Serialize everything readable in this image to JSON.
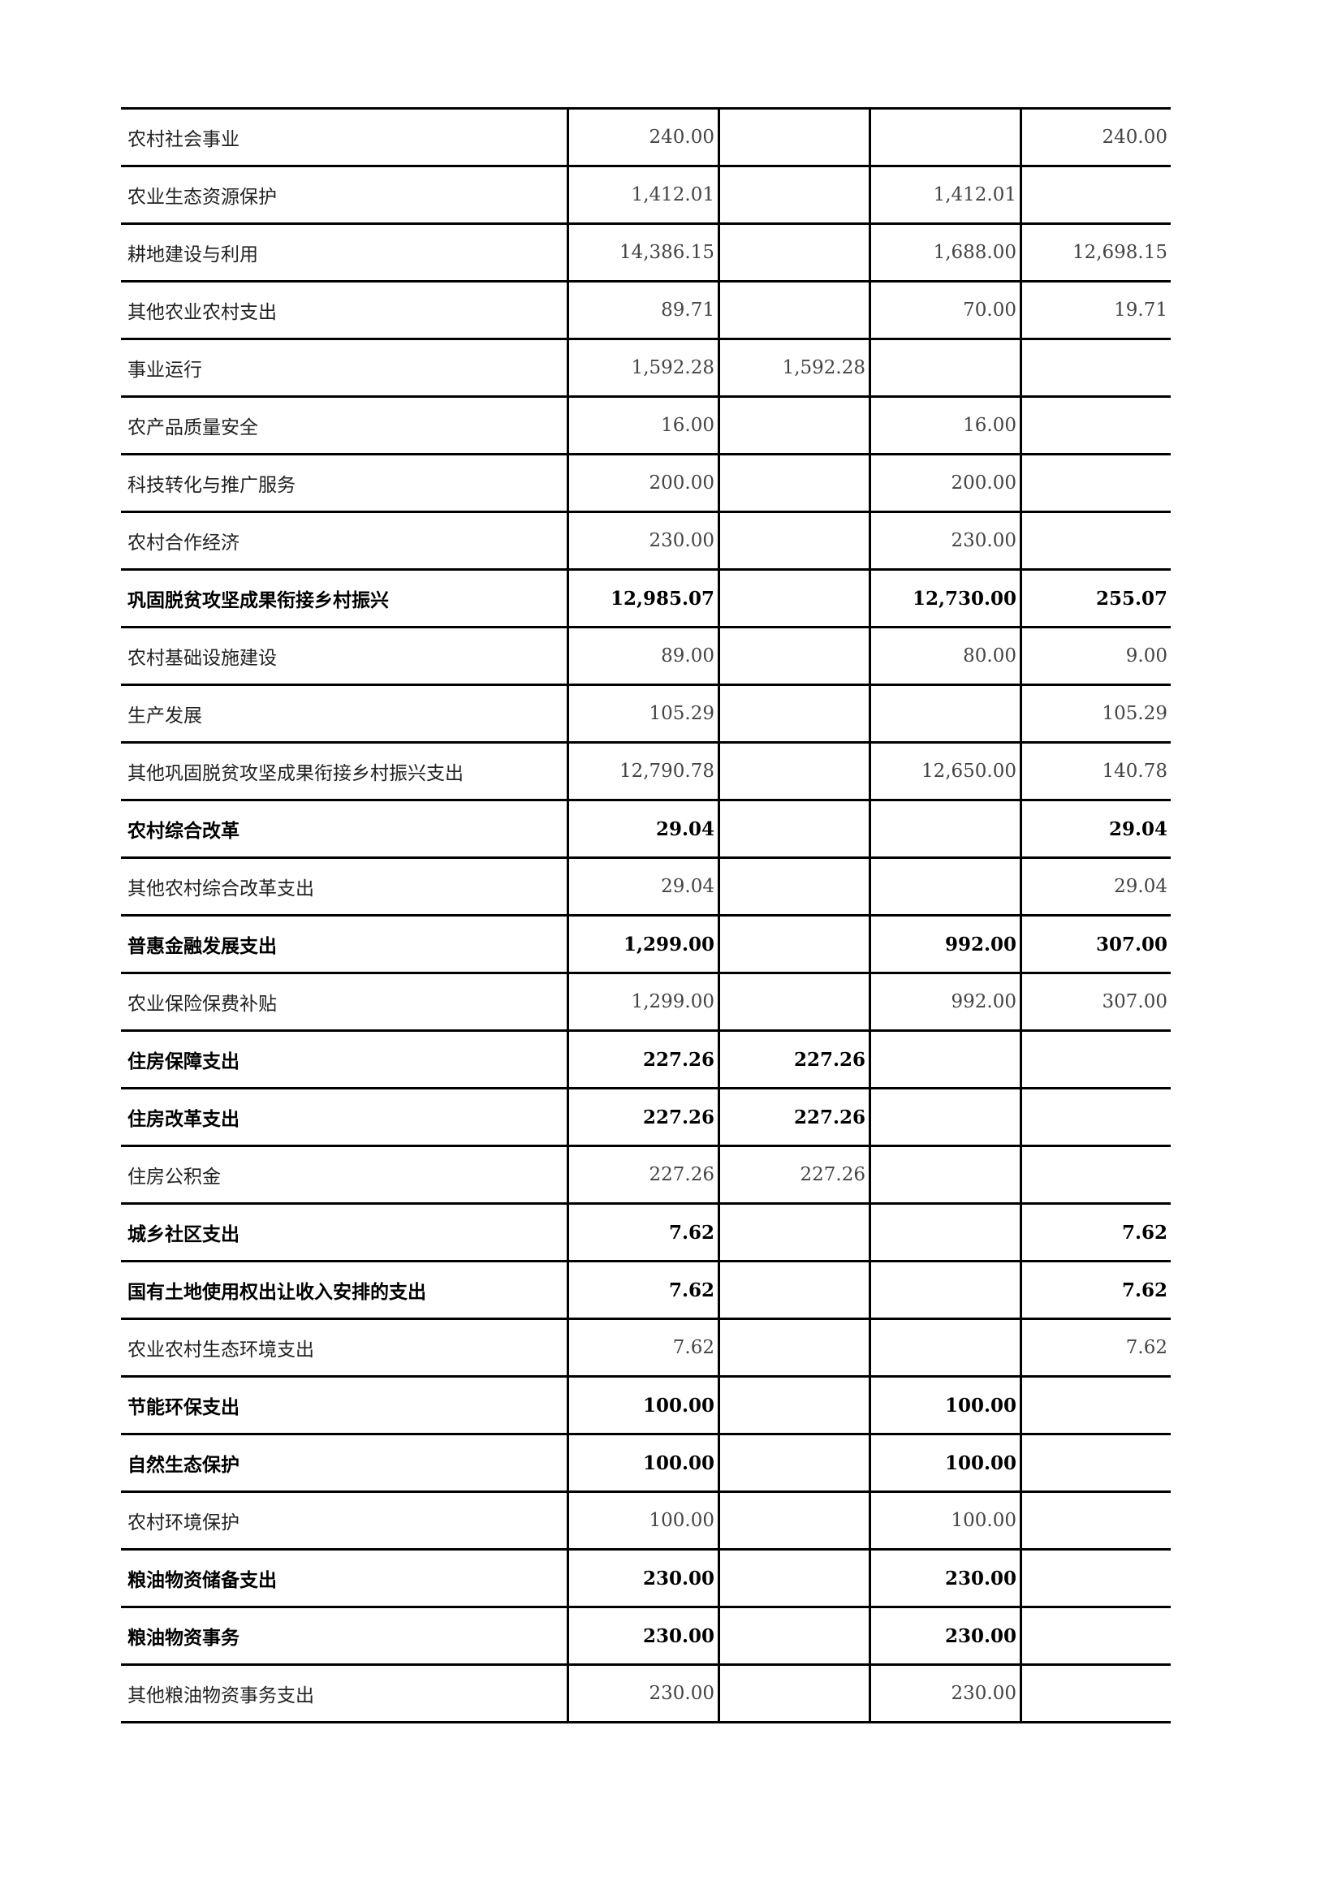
{
  "rows": [
    {
      "name": "农村社会事业",
      "total": "240.00",
      "c2": "",
      "c3": "",
      "c4": "240.00",
      "bold": false
    },
    {
      "name": "农业生态资源保护",
      "total": "1,412.01",
      "c2": "",
      "c3": "1,412.01",
      "c4": "",
      "bold": false
    },
    {
      "name": "耕地建设与利用",
      "total": "14,386.15",
      "c2": "",
      "c3": "1,688.00",
      "c4": "12,698.15",
      "bold": false
    },
    {
      "name": "其他农业农村支出",
      "total": "89.71",
      "c2": "",
      "c3": "70.00",
      "c4": "19.71",
      "bold": false
    },
    {
      "name": "事业运行",
      "total": "1,592.28",
      "c2": "1,592.28",
      "c3": "",
      "c4": "",
      "bold": false
    },
    {
      "name": "农产品质量安全",
      "total": "16.00",
      "c2": "",
      "c3": "16.00",
      "c4": "",
      "bold": false
    },
    {
      "name": "科技转化与推广服务",
      "total": "200.00",
      "c2": "",
      "c3": "200.00",
      "c4": "",
      "bold": false
    },
    {
      "name": "农村合作经济",
      "total": "230.00",
      "c2": "",
      "c3": "230.00",
      "c4": "",
      "bold": false
    },
    {
      "name": "巩固脱贫攻坚成果衔接乡村振兴",
      "total": "12,985.07",
      "c2": "",
      "c3": "12,730.00",
      "c4": "255.07",
      "bold": true
    },
    {
      "name": "农村基础设施建设",
      "total": "89.00",
      "c2": "",
      "c3": "80.00",
      "c4": "9.00",
      "bold": false
    },
    {
      "name": "生产发展",
      "total": "105.29",
      "c2": "",
      "c3": "",
      "c4": "105.29",
      "bold": false
    },
    {
      "name": "其他巩固脱贫攻坚成果衔接乡村振兴支出",
      "total": "12,790.78",
      "c2": "",
      "c3": "12,650.00",
      "c4": "140.78",
      "bold": false
    },
    {
      "name": "农村综合改革",
      "total": "29.04",
      "c2": "",
      "c3": "",
      "c4": "29.04",
      "bold": true
    },
    {
      "name": "其他农村综合改革支出",
      "total": "29.04",
      "c2": "",
      "c3": "",
      "c4": "29.04",
      "bold": false
    },
    {
      "name": "普惠金融发展支出",
      "total": "1,299.00",
      "c2": "",
      "c3": "992.00",
      "c4": "307.00",
      "bold": true
    },
    {
      "name": "农业保险保费补贴",
      "total": "1,299.00",
      "c2": "",
      "c3": "992.00",
      "c4": "307.00",
      "bold": false
    },
    {
      "name": "住房保障支出",
      "total": "227.26",
      "c2": "227.26",
      "c3": "",
      "c4": "",
      "bold": true
    },
    {
      "name": "住房改革支出",
      "total": "227.26",
      "c2": "227.26",
      "c3": "",
      "c4": "",
      "bold": true
    },
    {
      "name": "住房公积金",
      "total": "227.26",
      "c2": "227.26",
      "c3": "",
      "c4": "",
      "bold": false
    },
    {
      "name": "城乡社区支出",
      "total": "7.62",
      "c2": "",
      "c3": "",
      "c4": "7.62",
      "bold": true
    },
    {
      "name": "国有土地使用权出让收入安排的支出",
      "total": "7.62",
      "c2": "",
      "c3": "",
      "c4": "7.62",
      "bold": true
    },
    {
      "name": "农业农村生态环境支出",
      "total": "7.62",
      "c2": "",
      "c3": "",
      "c4": "7.62",
      "bold": false
    },
    {
      "name": "节能环保支出",
      "total": "100.00",
      "c2": "",
      "c3": "100.00",
      "c4": "",
      "bold": true
    },
    {
      "name": "自然生态保护",
      "total": "100.00",
      "c2": "",
      "c3": "100.00",
      "c4": "",
      "bold": true
    },
    {
      "name": "农村环境保护",
      "total": "100.00",
      "c2": "",
      "c3": "100.00",
      "c4": "",
      "bold": false
    },
    {
      "name": "粮油物资储备支出",
      "total": "230.00",
      "c2": "",
      "c3": "230.00",
      "c4": "",
      "bold": true
    },
    {
      "name": "粮油物资事务",
      "total": "230.00",
      "c2": "",
      "c3": "230.00",
      "c4": "",
      "bold": true
    },
    {
      "name": "其他粮油物资事务支出",
      "total": "230.00",
      "c2": "",
      "c3": "230.00",
      "c4": "",
      "bold": false
    }
  ]
}
